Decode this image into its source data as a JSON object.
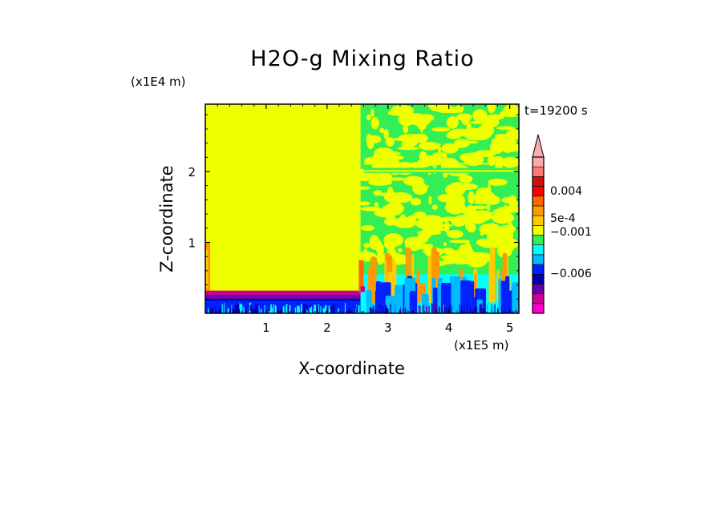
{
  "chart_data": {
    "type": "heatmap",
    "title": "H2O-g Mixing Ratio",
    "xlabel": "X-coordinate",
    "ylabel": "Z-coordinate",
    "x_unit": "(x1E5 m)",
    "y_unit": "(x1E4 m)",
    "time_label": "t=19200 s",
    "xlim": [
      0,
      5.15
    ],
    "ylim": [
      0,
      2.95
    ],
    "x_ticks": [
      "1",
      "2",
      "3",
      "4",
      "5"
    ],
    "x_tick_values": [
      1,
      2,
      3,
      4,
      5
    ],
    "y_ticks": [
      "1",
      "2"
    ],
    "y_tick_values": [
      1,
      2
    ],
    "grid": false,
    "colorbar": {
      "extend": "max",
      "labels": [
        "0.004",
        "5e-4",
        "−0.001",
        "−0.006"
      ],
      "colors": [
        "#ff00cc",
        "#cc0099",
        "#6600aa",
        "#0000aa",
        "#0022ff",
        "#00bbff",
        "#00ffff",
        "#33ee55",
        "#eeff00",
        "#ffcc00",
        "#ff9900",
        "#ff6600",
        "#ff0000",
        "#cc1111",
        "#ff7777",
        "#ffaaaa"
      ]
    },
    "regions": [
      {
        "x": [
          0,
          2.55
        ],
        "z": [
          0.3,
          2.95
        ],
        "level": "#eeff00"
      },
      {
        "x": [
          0,
          2.55
        ],
        "z": [
          0,
          0.3
        ],
        "level": "#0000aa"
      },
      {
        "x": [
          2.55,
          5.15
        ],
        "z": [
          0,
          2.95
        ],
        "level": "#33ee55"
      }
    ]
  }
}
